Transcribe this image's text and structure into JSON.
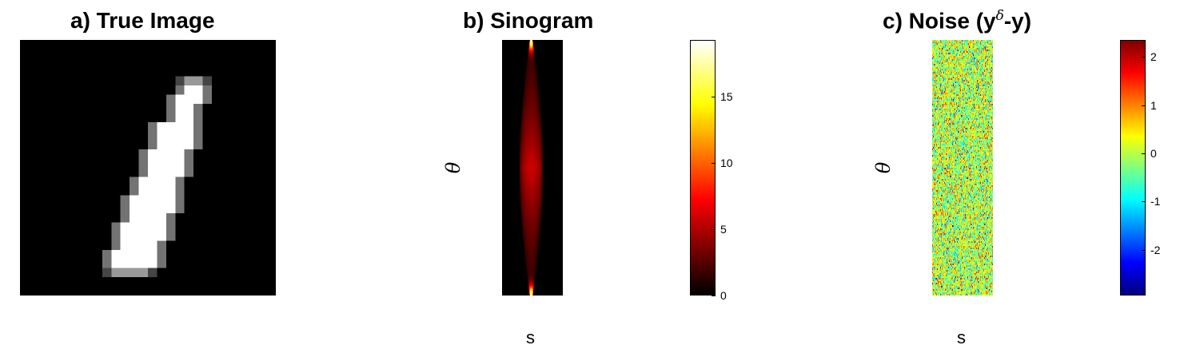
{
  "panels": {
    "a": {
      "title": "a) True Image"
    },
    "b": {
      "title": "b) Sinogram",
      "xlabel": "s",
      "ylabel": "θ"
    },
    "c": {
      "title_main": "c) Noise (y",
      "title_sup": "δ",
      "title_tail": "-y)",
      "xlabel": "s",
      "ylabel": "θ"
    }
  },
  "colorbars": {
    "sinogram": {
      "colormap": "hot",
      "range": [
        0,
        19.3
      ],
      "ticks": [
        "0",
        "5",
        "10",
        "15"
      ],
      "tick_values": [
        0,
        5,
        10,
        15
      ]
    },
    "noise": {
      "colormap": "jet",
      "range": [
        -2.95,
        2.35
      ],
      "ticks": [
        "-2",
        "-1",
        "0",
        "1",
        "2"
      ],
      "tick_values": [
        -2,
        -1,
        0,
        1,
        2
      ]
    }
  },
  "chart_data": [
    {
      "type": "heatmap",
      "title": "a) True Image",
      "colormap": "gray",
      "grid_size": [
        28,
        28
      ],
      "description_values": "digit 1 stroke, max intensity 1"
    },
    {
      "type": "heatmap",
      "title": "b) Sinogram",
      "xlabel": "s",
      "ylabel": "θ",
      "colormap": "hot",
      "zlim": [
        0,
        19.3
      ]
    },
    {
      "type": "heatmap",
      "title": "c) Noise (yδ-y)",
      "xlabel": "s",
      "ylabel": "θ",
      "colormap": "jet",
      "zlim": [
        -2.95,
        2.35
      ]
    }
  ]
}
